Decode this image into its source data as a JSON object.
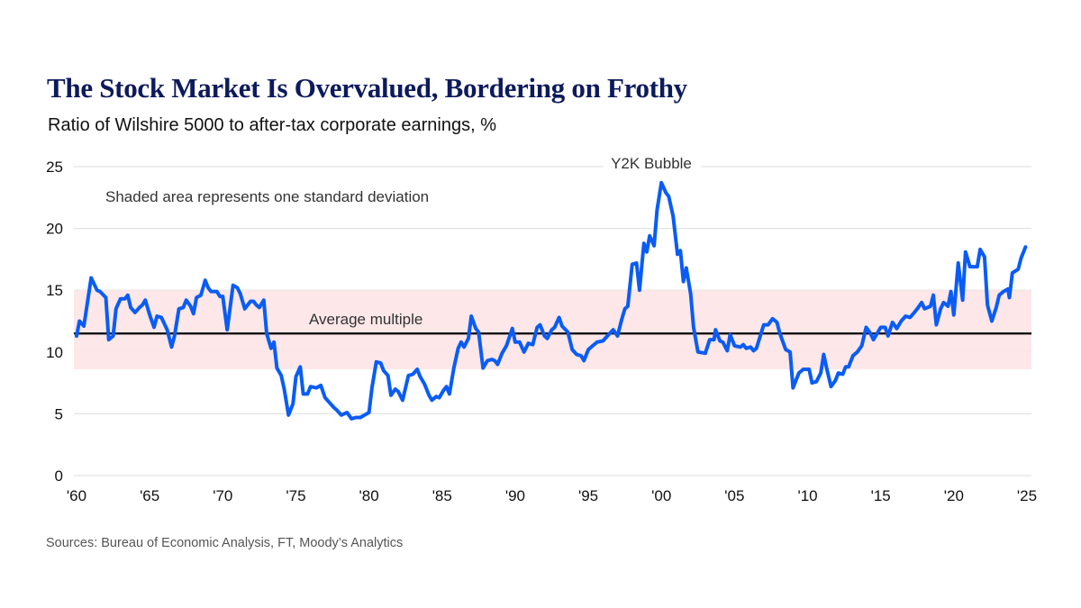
{
  "title": "The Stock Market Is Overvalued, Bordering on Frothy",
  "subtitle": "Ratio of Wilshire 5000 to after-tax corporate earnings, %",
  "source": "Sources: Bureau of Economic Analysis, FT, Moody’s Analytics",
  "colors": {
    "title": "#0d1a5c",
    "line": "#0a5cf5",
    "band": "#fde3e4",
    "average": "#000000",
    "grid": "#e3e3e3"
  },
  "chart_data": {
    "type": "line",
    "title": "The Stock Market Is Overvalued, Bordering on Frothy",
    "subtitle": "Ratio of Wilshire 5000 to after-tax corporate earnings, %",
    "xlabel": "",
    "ylabel": "",
    "xlim": [
      1960,
      2025
    ],
    "ylim": [
      0,
      25
    ],
    "grid": true,
    "x_ticks": [
      1960,
      1965,
      1970,
      1975,
      1980,
      1985,
      1990,
      1995,
      2000,
      2005,
      2010,
      2015,
      2020,
      2025
    ],
    "x_tick_labels": [
      "'60",
      "'65",
      "'70",
      "'75",
      "'80",
      "'85",
      "'90",
      "'95",
      "'00",
      "'05",
      "'10",
      "'15",
      "'20",
      "'25"
    ],
    "y_ticks": [
      0,
      5,
      10,
      15,
      20,
      25
    ],
    "y_tick_labels": [
      "0",
      "5",
      "10",
      "15",
      "20",
      "25"
    ],
    "average_multiple": 11.5,
    "std_band": [
      8.6,
      15.0
    ],
    "annotations": {
      "band_note": "Shaded area represents one standard deviation",
      "average_label": "Average multiple",
      "peak_label": "Y2K Bubble"
    },
    "series": [
      {
        "x": [
          1960.0,
          1960.2,
          1960.5,
          1961.0,
          1961.4,
          1961.6,
          1962.0,
          1962.2,
          1962.5,
          1962.7,
          1963.0,
          1963.3,
          1963.5,
          1963.7,
          1964.0,
          1964.3,
          1964.5,
          1964.7,
          1965.0,
          1965.3,
          1965.5,
          1965.8,
          1966.2,
          1966.5,
          1966.7,
          1967.0,
          1967.3,
          1967.5,
          1967.8,
          1968.0,
          1968.2,
          1968.5,
          1968.8,
          1969.0,
          1969.2,
          1969.6,
          1969.8,
          1970.0,
          1970.3,
          1970.7,
          1971.0,
          1971.2,
          1971.5,
          1971.9,
          1972.1,
          1972.3,
          1972.5,
          1972.8,
          1973.0,
          1973.3,
          1973.5,
          1973.7,
          1974.0,
          1974.2,
          1974.5,
          1974.8,
          1975.0,
          1975.3,
          1975.5,
          1975.8,
          1976.0,
          1976.4,
          1976.7,
          1977.0,
          1977.3,
          1977.6,
          1977.8,
          1978.1,
          1978.5,
          1978.8,
          1979.1,
          1979.4,
          1980.0,
          1980.2,
          1980.5,
          1980.8,
          1981.0,
          1981.3,
          1981.5,
          1981.8,
          1982.0,
          1982.3,
          1982.7,
          1983.0,
          1983.3,
          1983.5,
          1983.8,
          1984.1,
          1984.3,
          1984.6,
          1984.8,
          1985.1,
          1985.3,
          1985.5,
          1985.8,
          1986.1,
          1986.3,
          1986.5,
          1986.8,
          1987.0,
          1987.3,
          1987.5,
          1987.8,
          1988.1,
          1988.4,
          1988.6,
          1988.8,
          1989.1,
          1989.4,
          1989.8,
          1990.0,
          1990.3,
          1990.6,
          1990.9,
          1991.2,
          1991.5,
          1991.7,
          1992.0,
          1992.2,
          1992.5,
          1992.7,
          1993.0,
          1993.2,
          1993.6,
          1993.9,
          1994.2,
          1994.5,
          1994.7,
          1995.0,
          1995.3,
          1995.6,
          1996.0,
          1996.3,
          1996.7,
          1997.0,
          1997.3,
          1997.5,
          1997.7,
          1998.0,
          1998.3,
          1998.5,
          1998.8,
          1999.0,
          1999.2,
          1999.5,
          1999.7,
          2000.0,
          2000.3,
          2000.5,
          2000.8,
          2001.1,
          2001.3,
          2001.5,
          2001.7,
          2002.0,
          2002.2,
          2002.5,
          2003.0,
          2003.3,
          2003.6,
          2003.7,
          2004.0,
          2004.2,
          2004.5,
          2004.7,
          2005.0,
          2005.4,
          2005.6,
          2005.8,
          2006.1,
          2006.3,
          2006.5,
          2007.0,
          2007.3,
          2007.6,
          2007.9,
          2008.1,
          2008.5,
          2008.8,
          2009.0,
          2009.4,
          2009.7,
          2010.1,
          2010.3,
          2010.6,
          2010.9,
          2011.1,
          2011.3,
          2011.6,
          2011.9,
          2012.1,
          2012.4,
          2012.6,
          2012.8,
          2013.1,
          2013.4,
          2013.7,
          2014.0,
          2014.3,
          2014.5,
          2015.0,
          2015.3,
          2015.5,
          2015.8,
          2016.1,
          2016.4,
          2016.7,
          2017.0,
          2017.3,
          2017.5,
          2017.8,
          2018.0,
          2018.4,
          2018.6,
          2018.8,
          2019.1,
          2019.3,
          2019.6,
          2019.8,
          2020.0,
          2020.3,
          2020.6,
          2020.8,
          2021.1,
          2021.6,
          2021.8,
          2022.1,
          2022.3,
          2022.6,
          2022.9,
          2023.1,
          2023.4,
          2023.7,
          2023.8,
          2024.0,
          2024.4,
          2024.6,
          2024.9
        ],
        "values": [
          11.3,
          12.5,
          12.1,
          16.0,
          15.0,
          14.9,
          14.4,
          11.0,
          11.3,
          13.5,
          14.3,
          14.3,
          14.6,
          13.6,
          13.2,
          13.6,
          13.8,
          14.2,
          13.0,
          12.0,
          12.9,
          12.8,
          11.8,
          10.4,
          11.3,
          13.5,
          13.6,
          14.2,
          13.7,
          13.1,
          14.4,
          14.6,
          15.8,
          15.2,
          14.9,
          14.9,
          14.5,
          14.5,
          11.8,
          15.4,
          15.2,
          14.7,
          13.5,
          14.1,
          14.1,
          13.8,
          13.6,
          14.2,
          11.5,
          10.3,
          10.8,
          8.7,
          8.1,
          7.0,
          4.9,
          5.8,
          8.0,
          8.8,
          6.6,
          6.6,
          7.2,
          7.1,
          7.3,
          6.3,
          5.9,
          5.5,
          5.3,
          4.9,
          5.1,
          4.6,
          4.7,
          4.7,
          5.1,
          7.1,
          9.2,
          9.1,
          8.5,
          8.1,
          6.5,
          7.0,
          6.8,
          6.1,
          8.1,
          8.2,
          8.6,
          8.0,
          7.4,
          6.5,
          6.1,
          6.4,
          6.3,
          6.9,
          7.2,
          6.6,
          8.7,
          10.3,
          10.8,
          10.4,
          11.1,
          12.9,
          11.9,
          11.6,
          8.7,
          9.3,
          9.4,
          9.3,
          9.0,
          9.9,
          10.5,
          11.9,
          10.8,
          10.8,
          10.0,
          10.7,
          10.6,
          12.0,
          12.2,
          11.3,
          11.1,
          11.8,
          12.0,
          12.8,
          12.1,
          11.6,
          10.2,
          9.8,
          9.7,
          9.3,
          10.2,
          10.5,
          10.8,
          10.9,
          11.3,
          11.8,
          11.3,
          12.7,
          13.5,
          13.7,
          17.1,
          17.2,
          15.0,
          18.8,
          18.1,
          19.4,
          18.6,
          21.5,
          23.7,
          22.9,
          22.6,
          21.0,
          17.9,
          18.2,
          15.7,
          16.8,
          14.7,
          12.0,
          10.0,
          9.9,
          11.0,
          11.0,
          11.8,
          10.9,
          10.8,
          10.1,
          11.4,
          10.5,
          10.4,
          10.6,
          10.3,
          10.4,
          10.1,
          10.3,
          12.2,
          12.2,
          12.7,
          12.4,
          11.5,
          10.2,
          10.0,
          7.1,
          8.3,
          8.6,
          8.6,
          7.5,
          7.6,
          8.3,
          9.8,
          8.7,
          7.2,
          7.7,
          8.3,
          8.2,
          8.8,
          8.8,
          9.7,
          10.0,
          10.5,
          12.0,
          11.5,
          11.0,
          12.0,
          12.0,
          11.3,
          12.4,
          11.9,
          12.5,
          12.9,
          12.8,
          13.2,
          13.5,
          14.0,
          13.5,
          13.7,
          14.6,
          12.2,
          13.5,
          14.0,
          13.7,
          14.9,
          13.0,
          17.2,
          14.2,
          18.1,
          16.9,
          16.9,
          18.3,
          17.7,
          13.8,
          12.5,
          13.6,
          14.6,
          14.9,
          15.1,
          14.4,
          16.4,
          16.7,
          17.6,
          18.5
        ]
      }
    ]
  }
}
